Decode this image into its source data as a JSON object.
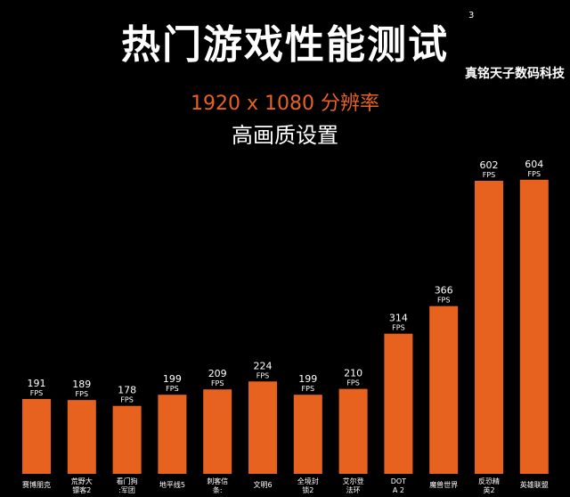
{
  "header": {
    "title": "热门游戏性能测试",
    "superscript": "3",
    "resolution": "1920 x 1080 分辨率",
    "quality": "高画质设置"
  },
  "watermark": "真铭天子数码科技",
  "chart_data": {
    "type": "bar",
    "title": "热门游戏性能测试",
    "subtitle": "1920 x 1080 分辨率 高画质设置",
    "unit": "FPS",
    "categories": [
      "赛博朋克",
      "荒野大镖客2",
      "看门狗:军团",
      "地平线5",
      "刺客信条:",
      "文明6",
      "全境封锁2",
      "艾尔登法环",
      "DOTA 2",
      "魔兽世界",
      "反恐精英2",
      "英雄联盟"
    ],
    "values": [
      191,
      189,
      178,
      199,
      209,
      224,
      199,
      210,
      314,
      366,
      602,
      604
    ],
    "bar_color": "#e8621f",
    "grid": false
  }
}
